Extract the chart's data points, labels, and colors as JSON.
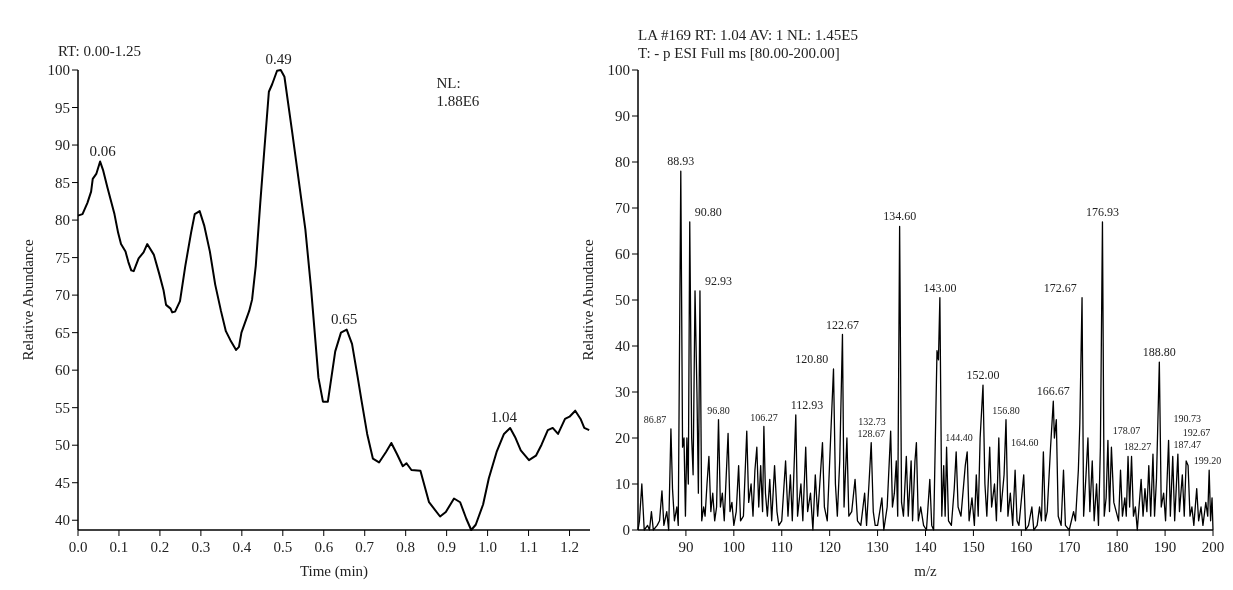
{
  "chart_data": [
    {
      "type": "line",
      "title": "RT: 0.00-1.25",
      "xlabel": "Time (min)",
      "ylabel": "Relative Abundance",
      "xlim": [
        0,
        1.25
      ],
      "ylim": [
        38.7,
        100
      ],
      "xticks": [
        {
          "value": 0,
          "label": "0.0"
        },
        {
          "value": 0.1,
          "label": "0.1"
        },
        {
          "value": 0.2,
          "label": "0.2"
        },
        {
          "value": 0.3,
          "label": "0.3"
        },
        {
          "value": 0.4,
          "label": "0.4"
        },
        {
          "value": 0.5,
          "label": "0.5"
        },
        {
          "value": 0.6,
          "label": "0.6"
        },
        {
          "value": 0.7,
          "label": "0.7"
        },
        {
          "value": 0.8,
          "label": "0.8"
        },
        {
          "value": 0.9,
          "label": "0.9"
        },
        {
          "value": 1,
          "label": "1.0"
        },
        {
          "value": 1.1,
          "label": "1.1"
        },
        {
          "value": 1.2,
          "label": "1.2"
        }
      ],
      "yticks": [
        40,
        45,
        50,
        55,
        60,
        65,
        70,
        75,
        80,
        85,
        90,
        95,
        100
      ],
      "x": [
        0,
        0.011,
        0.023,
        0.032,
        0.036,
        0.045,
        0.054,
        0.061,
        0.072,
        0.089,
        0.098,
        0.105,
        0.116,
        0.123,
        0.13,
        0.136,
        0.148,
        0.16,
        0.169,
        0.185,
        0.198,
        0.209,
        0.215,
        0.226,
        0.23,
        0.237,
        0.249,
        0.262,
        0.276,
        0.285,
        0.297,
        0.308,
        0.322,
        0.335,
        0.349,
        0.361,
        0.372,
        0.386,
        0.393,
        0.399,
        0.418,
        0.425,
        0.434,
        0.445,
        0.454,
        0.466,
        0.474,
        0.486,
        0.495,
        0.504,
        0.523,
        0.555,
        0.569,
        0.587,
        0.598,
        0.61,
        0.628,
        0.642,
        0.656,
        0.669,
        0.683,
        0.692,
        0.706,
        0.72,
        0.735,
        0.752,
        0.765,
        0.779,
        0.793,
        0.802,
        0.814,
        0.836,
        0.857,
        0.884,
        0.898,
        0.918,
        0.933,
        0.948,
        0.96,
        0.971,
        0.989,
        1.003,
        1.022,
        1.04,
        1.055,
        1.067,
        1.081,
        1.101,
        1.118,
        1.132,
        1.147,
        1.159,
        1.172,
        1.189,
        1.2,
        1.214,
        1.227,
        1.236,
        1.248
      ],
      "series": [
        {
          "color": "#000000",
          "values": [
            80.6,
            80.8,
            82.3,
            83.8,
            85.5,
            86.2,
            87.8,
            86.7,
            84.3,
            80.8,
            78.3,
            76.8,
            75.8,
            74.4,
            73.3,
            73.2,
            74.9,
            75.7,
            76.8,
            75.4,
            72.9,
            70.6,
            68.7,
            68.2,
            67.7,
            67.8,
            69.2,
            73.9,
            78.3,
            80.8,
            81.2,
            79.3,
            75.8,
            71.4,
            67.9,
            65.2,
            64,
            62.7,
            63.1,
            65,
            67.9,
            69.4,
            73.9,
            82.3,
            88.7,
            97.1,
            98.1,
            99.9,
            100,
            99.1,
            91.7,
            78.8,
            70.9,
            59,
            55.8,
            55.8,
            62.5,
            65,
            65.4,
            63.5,
            59,
            56,
            51.5,
            48.2,
            47.7,
            49.1,
            50.3,
            48.8,
            47.2,
            47.6,
            46.7,
            46.6,
            42.4,
            40.5,
            41.1,
            42.9,
            42.4,
            40.2,
            38.7,
            39.4,
            42.1,
            45.6,
            49.1,
            51.5,
            52.3,
            51.1,
            49.3,
            48,
            48.6,
            50.1,
            52,
            52.3,
            51.5,
            53.5,
            53.8,
            54.6,
            53.5,
            52.3,
            52
          ]
        }
      ],
      "annotations": [
        {
          "text": "0.06",
          "x": 0.06,
          "y": 87.8
        },
        {
          "text": "0.49",
          "x": 0.49,
          "y": 100
        },
        {
          "text": "0.65",
          "x": 0.65,
          "y": 65.4
        },
        {
          "text": "1.04",
          "x": 1.04,
          "y": 52.3
        },
        "NL: 1.88E6"
      ]
    },
    {
      "type": "line",
      "title": "LA #169 RT: 1.04 AV: 1 NL: 1.45E5",
      "subtitle": "T: - p ESI Full ms [80.00-200.00]",
      "xlabel": "m/z",
      "ylabel": "Relative Abundance",
      "xlim": [
        80,
        200
      ],
      "ylim": [
        0,
        100
      ],
      "xticks": [
        90,
        100,
        110,
        120,
        130,
        140,
        150,
        160,
        170,
        180,
        190,
        200
      ],
      "yticks": [
        0,
        10,
        20,
        30,
        40,
        50,
        60,
        70,
        80,
        90,
        100
      ],
      "x": [
        80,
        80.3,
        80.8,
        81.3,
        82,
        82.4,
        82.8,
        83.2,
        84,
        84.5,
        85,
        85.4,
        86,
        86.4,
        86.87,
        87.2,
        87.6,
        88.1,
        88.4,
        88.93,
        89.3,
        89.6,
        89.9,
        90.2,
        90.5,
        90.8,
        91.2,
        91.5,
        91.9,
        92.3,
        92.6,
        92.93,
        93.3,
        93.7,
        94,
        94.4,
        94.8,
        95.2,
        95.6,
        96,
        96.4,
        96.8,
        97.2,
        97.6,
        98,
        98.8,
        99.2,
        99.6,
        100,
        100.5,
        101,
        101.4,
        102,
        102.7,
        103.1,
        103.6,
        104,
        104.4,
        104.8,
        105.2,
        105.6,
        106,
        106.27,
        106.6,
        107,
        107.5,
        107.9,
        108.5,
        109,
        109.4,
        110,
        110.8,
        111.3,
        111.8,
        112.2,
        112.93,
        113.3,
        114,
        114.4,
        115,
        115.4,
        116,
        116.5,
        117,
        117.5,
        118.5,
        118.9,
        119.5,
        120.2,
        120.8,
        121.2,
        121.6,
        122.1,
        122.67,
        123,
        123.6,
        124,
        124.6,
        125.3,
        125.8,
        126.5,
        127.3,
        127.7,
        128.2,
        128.67,
        129.1,
        129.5,
        130,
        130.9,
        131.3,
        132,
        132.73,
        133.1,
        133.5,
        133.9,
        134.2,
        134.6,
        135,
        135.4,
        136,
        136.4,
        137,
        137.3,
        137.8,
        138.1,
        138.5,
        139,
        139.6,
        140.2,
        140.9,
        141.3,
        141.7,
        142.4,
        142.7,
        143,
        143.4,
        143.8,
        144.1,
        144.4,
        144.8,
        145.4,
        146,
        146.4,
        146.8,
        147.4,
        148.3,
        148.7,
        149.1,
        149.7,
        150.2,
        150.6,
        151,
        151.4,
        152,
        152.4,
        152.8,
        153.4,
        153.8,
        154.4,
        154.8,
        155.3,
        155.7,
        156.4,
        156.8,
        157.2,
        157.7,
        158.2,
        158.7,
        159.1,
        159.5,
        160.5,
        160.9,
        161.5,
        162.2,
        162.6,
        163.3,
        163.8,
        164.2,
        164.6,
        165,
        165.4,
        166.1,
        166.67,
        166.9,
        167.3,
        167.7,
        168.3,
        168.8,
        169.2,
        170,
        170.9,
        171.3,
        171.9,
        172.2,
        172.67,
        173,
        173.5,
        173.9,
        174.3,
        174.8,
        175.2,
        175.7,
        176.1,
        176.5,
        176.93,
        177.3,
        177.7,
        178.07,
        178.4,
        178.8,
        179.3,
        179.8,
        180.3,
        180.7,
        181.1,
        181.6,
        181.9,
        182.27,
        182.6,
        183,
        183.4,
        183.8,
        184.2,
        185,
        185.4,
        185.8,
        186.2,
        186.6,
        187,
        187.47,
        187.8,
        188.2,
        188.8,
        189.2,
        189.7,
        190.1,
        190.73,
        191.1,
        191.6,
        192,
        192.67,
        193,
        193.6,
        194,
        194.4,
        194.8,
        195.2,
        195.6,
        196,
        196.6,
        197,
        197.5,
        197.9,
        198.5,
        198.9,
        199.2,
        199.5,
        199.8,
        200
      ],
      "series": [
        {
          "color": "#000000",
          "values": [
            0,
            2,
            10,
            0,
            1,
            0,
            4,
            0,
            1,
            2,
            8.5,
            1,
            4,
            0,
            22,
            9,
            2,
            5,
            1,
            78,
            18,
            20,
            3,
            20,
            10,
            67,
            20,
            12,
            52,
            30,
            8,
            52,
            2,
            5,
            3,
            10,
            16,
            4,
            8,
            2,
            5,
            24,
            5,
            8,
            2,
            21,
            4,
            6,
            1,
            4,
            14,
            2,
            3,
            21.5,
            6,
            10,
            3,
            13,
            18,
            5,
            14,
            4,
            22.5,
            8,
            3,
            11,
            2,
            14,
            4,
            1,
            2,
            15,
            3,
            12,
            2,
            25,
            3,
            10,
            2,
            18,
            4,
            8,
            0,
            12,
            3,
            19,
            5,
            2,
            20,
            35,
            10,
            3,
            15,
            42.5,
            5,
            20,
            3,
            4,
            11,
            2,
            1,
            8,
            1,
            10,
            19,
            4,
            1,
            1,
            7,
            0,
            5,
            21.5,
            5,
            8,
            15,
            3,
            66,
            6,
            3,
            16,
            3,
            15,
            2,
            15,
            19,
            2,
            5,
            1,
            0,
            11,
            1,
            0,
            39,
            37,
            50.5,
            3,
            14,
            3,
            18,
            2,
            1,
            9,
            17,
            5,
            3,
            14,
            17,
            2,
            7,
            1,
            12,
            3,
            20,
            31.5,
            10,
            3,
            18,
            5,
            10,
            2,
            20,
            4,
            12,
            24,
            3,
            8,
            1,
            13,
            2,
            1,
            12,
            0,
            1,
            5,
            0,
            1,
            5,
            2,
            17,
            2,
            4,
            18,
            28,
            20,
            24,
            3,
            1,
            13,
            1,
            0,
            4,
            2,
            13,
            23,
            50.5,
            3,
            12,
            20,
            4,
            15,
            2,
            10,
            1,
            18,
            67,
            3,
            7,
            19.5,
            4,
            18,
            6,
            4,
            2,
            13,
            3,
            7,
            3,
            16,
            5,
            16,
            3,
            5,
            0,
            11,
            3,
            9,
            4,
            14,
            3,
            16.5,
            3,
            11,
            36.5,
            5,
            8,
            2,
            19.5,
            3,
            16,
            2,
            16.5,
            4,
            12,
            3,
            15,
            14,
            3,
            5,
            1,
            9,
            2,
            5,
            1,
            6,
            3,
            13,
            2,
            7,
            0
          ]
        }
      ],
      "annotations": [
        {
          "text": "86.87",
          "x": 86.87,
          "y": 22
        },
        {
          "text": "88.93",
          "x": 88.93,
          "y": 78
        },
        {
          "text": "90.80",
          "x": 90.8,
          "y": 67
        },
        {
          "text": "92.93",
          "x": 92.93,
          "y": 52
        },
        {
          "text": "96.80",
          "x": 96.8,
          "y": 24
        },
        {
          "text": "106.27",
          "x": 106.27,
          "y": 22.5
        },
        {
          "text": "112.93",
          "x": 112.93,
          "y": 25
        },
        {
          "text": "120.80",
          "x": 120.8,
          "y": 35
        },
        {
          "text": "122.67",
          "x": 122.67,
          "y": 42.5
        },
        {
          "text": "128.67",
          "x": 128.67,
          "y": 19
        },
        {
          "text": "132.73",
          "x": 132.73,
          "y": 21.5
        },
        {
          "text": "134.60",
          "x": 134.6,
          "y": 66
        },
        {
          "text": "143.00",
          "x": 143,
          "y": 50.5
        },
        {
          "text": "144.40",
          "x": 144.4,
          "y": 18
        },
        {
          "text": "152.00",
          "x": 152,
          "y": 31.5
        },
        {
          "text": "156.80",
          "x": 156.8,
          "y": 24
        },
        {
          "text": "164.60",
          "x": 164.6,
          "y": 17
        },
        {
          "text": "166.67",
          "x": 166.67,
          "y": 28
        },
        {
          "text": "172.67",
          "x": 172.67,
          "y": 50.5
        },
        {
          "text": "176.93",
          "x": 176.93,
          "y": 67
        },
        {
          "text": "178.07",
          "x": 178.07,
          "y": 19.5
        },
        {
          "text": "182.27",
          "x": 182.27,
          "y": 16
        },
        {
          "text": "187.47",
          "x": 187.47,
          "y": 16.5
        },
        {
          "text": "188.80",
          "x": 188.8,
          "y": 36.5
        },
        {
          "text": "190.73",
          "x": 190.73,
          "y": 19.5
        },
        {
          "text": "192.67",
          "x": 192.67,
          "y": 16.5
        },
        {
          "text": "199.20",
          "x": 199.2,
          "y": 13
        }
      ]
    }
  ]
}
